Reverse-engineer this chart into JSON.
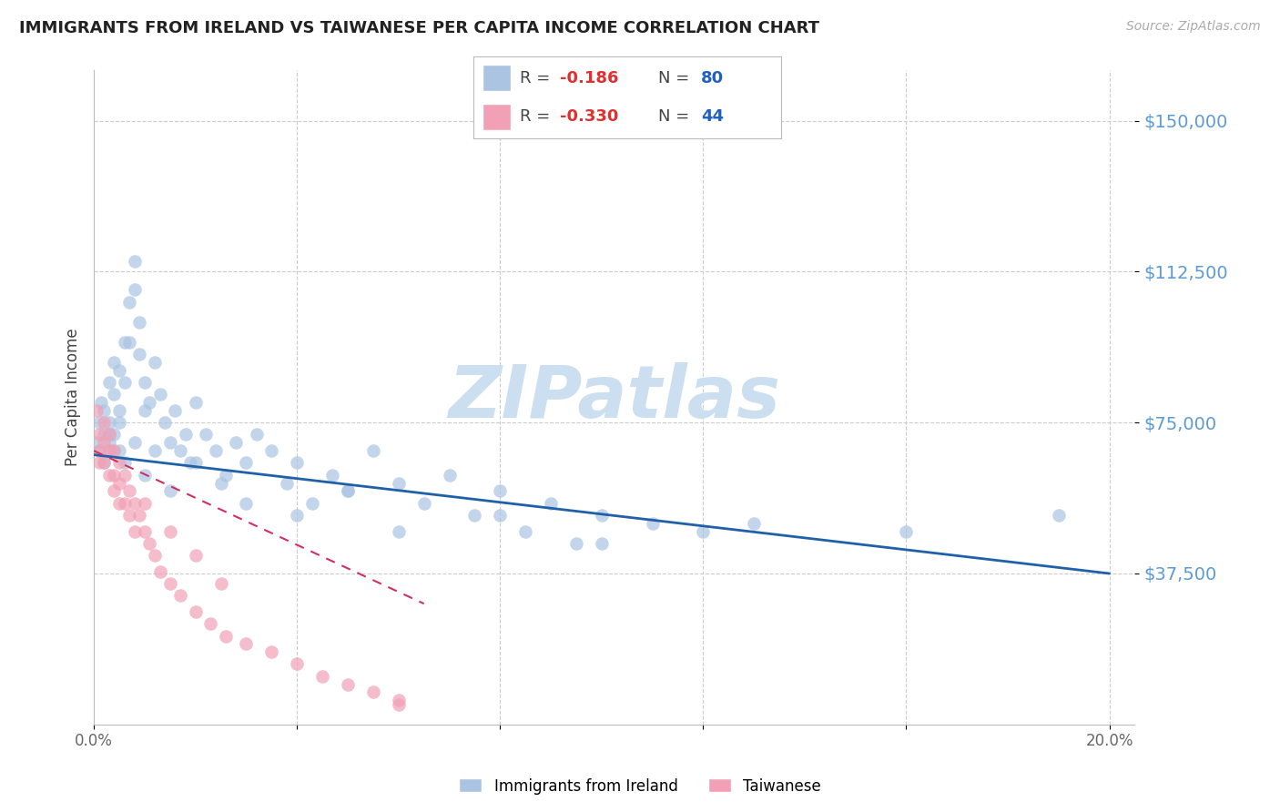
{
  "title": "IMMIGRANTS FROM IRELAND VS TAIWANESE PER CAPITA INCOME CORRELATION CHART",
  "source": "Source: ZipAtlas.com",
  "ylabel": "Per Capita Income",
  "ytick_labels": [
    "$37,500",
    "$75,000",
    "$112,500",
    "$150,000"
  ],
  "ytick_values": [
    37500,
    75000,
    112500,
    150000
  ],
  "ylim": [
    0,
    162500
  ],
  "xlim": [
    0.0,
    0.205
  ],
  "legend_ireland_r": "-0.186",
  "legend_ireland_n": "80",
  "legend_taiwanese_r": "-0.330",
  "legend_taiwanese_n": "44",
  "ireland_color": "#aac4e2",
  "taiwan_color": "#f2a0b5",
  "ireland_line_color": "#2060a8",
  "taiwan_line_color": "#d03060",
  "background_color": "#ffffff",
  "grid_color": "#cccccc",
  "title_color": "#222222",
  "ytick_color": "#5b9bd5",
  "source_color": "#aaaaaa",
  "watermark_color": "#ccdff0",
  "xtick_positions": [
    0.0,
    0.04,
    0.08,
    0.12,
    0.16,
    0.2
  ],
  "xtick_labels": [
    "0.0%",
    "",
    "",
    "",
    "",
    "20.0%"
  ],
  "ireland_x": [
    0.0005,
    0.001,
    0.001,
    0.0015,
    0.002,
    0.002,
    0.002,
    0.003,
    0.003,
    0.003,
    0.004,
    0.004,
    0.004,
    0.005,
    0.005,
    0.005,
    0.006,
    0.006,
    0.007,
    0.007,
    0.008,
    0.008,
    0.009,
    0.009,
    0.01,
    0.01,
    0.011,
    0.012,
    0.013,
    0.014,
    0.015,
    0.016,
    0.017,
    0.018,
    0.019,
    0.02,
    0.022,
    0.024,
    0.026,
    0.028,
    0.03,
    0.032,
    0.035,
    0.038,
    0.04,
    0.043,
    0.047,
    0.05,
    0.055,
    0.06,
    0.065,
    0.07,
    0.075,
    0.08,
    0.085,
    0.09,
    0.095,
    0.1,
    0.11,
    0.12,
    0.003,
    0.004,
    0.005,
    0.006,
    0.008,
    0.01,
    0.012,
    0.015,
    0.02,
    0.025,
    0.03,
    0.04,
    0.05,
    0.06,
    0.08,
    0.1,
    0.13,
    0.16,
    0.19,
    0.003
  ],
  "ireland_y": [
    70000,
    75000,
    68000,
    80000,
    72000,
    78000,
    65000,
    85000,
    75000,
    70000,
    90000,
    82000,
    72000,
    88000,
    78000,
    68000,
    95000,
    85000,
    105000,
    95000,
    115000,
    108000,
    100000,
    92000,
    85000,
    78000,
    80000,
    90000,
    82000,
    75000,
    70000,
    78000,
    68000,
    72000,
    65000,
    80000,
    72000,
    68000,
    62000,
    70000,
    65000,
    72000,
    68000,
    60000,
    65000,
    55000,
    62000,
    58000,
    68000,
    60000,
    55000,
    62000,
    52000,
    58000,
    48000,
    55000,
    45000,
    52000,
    50000,
    48000,
    72000,
    68000,
    75000,
    65000,
    70000,
    62000,
    68000,
    58000,
    65000,
    60000,
    55000,
    52000,
    58000,
    48000,
    52000,
    45000,
    50000,
    48000,
    52000,
    68000
  ],
  "taiwan_x": [
    0.0005,
    0.001,
    0.001,
    0.001,
    0.002,
    0.002,
    0.002,
    0.003,
    0.003,
    0.003,
    0.004,
    0.004,
    0.004,
    0.005,
    0.005,
    0.005,
    0.006,
    0.006,
    0.007,
    0.007,
    0.008,
    0.008,
    0.009,
    0.01,
    0.011,
    0.012,
    0.013,
    0.015,
    0.017,
    0.02,
    0.023,
    0.026,
    0.03,
    0.035,
    0.04,
    0.045,
    0.05,
    0.055,
    0.06,
    0.06,
    0.02,
    0.025,
    0.01,
    0.015
  ],
  "taiwan_y": [
    78000,
    72000,
    68000,
    65000,
    75000,
    70000,
    65000,
    72000,
    68000,
    62000,
    68000,
    62000,
    58000,
    65000,
    60000,
    55000,
    62000,
    55000,
    58000,
    52000,
    55000,
    48000,
    52000,
    48000,
    45000,
    42000,
    38000,
    35000,
    32000,
    28000,
    25000,
    22000,
    20000,
    18000,
    15000,
    12000,
    10000,
    8000,
    6000,
    5000,
    42000,
    35000,
    55000,
    48000
  ]
}
